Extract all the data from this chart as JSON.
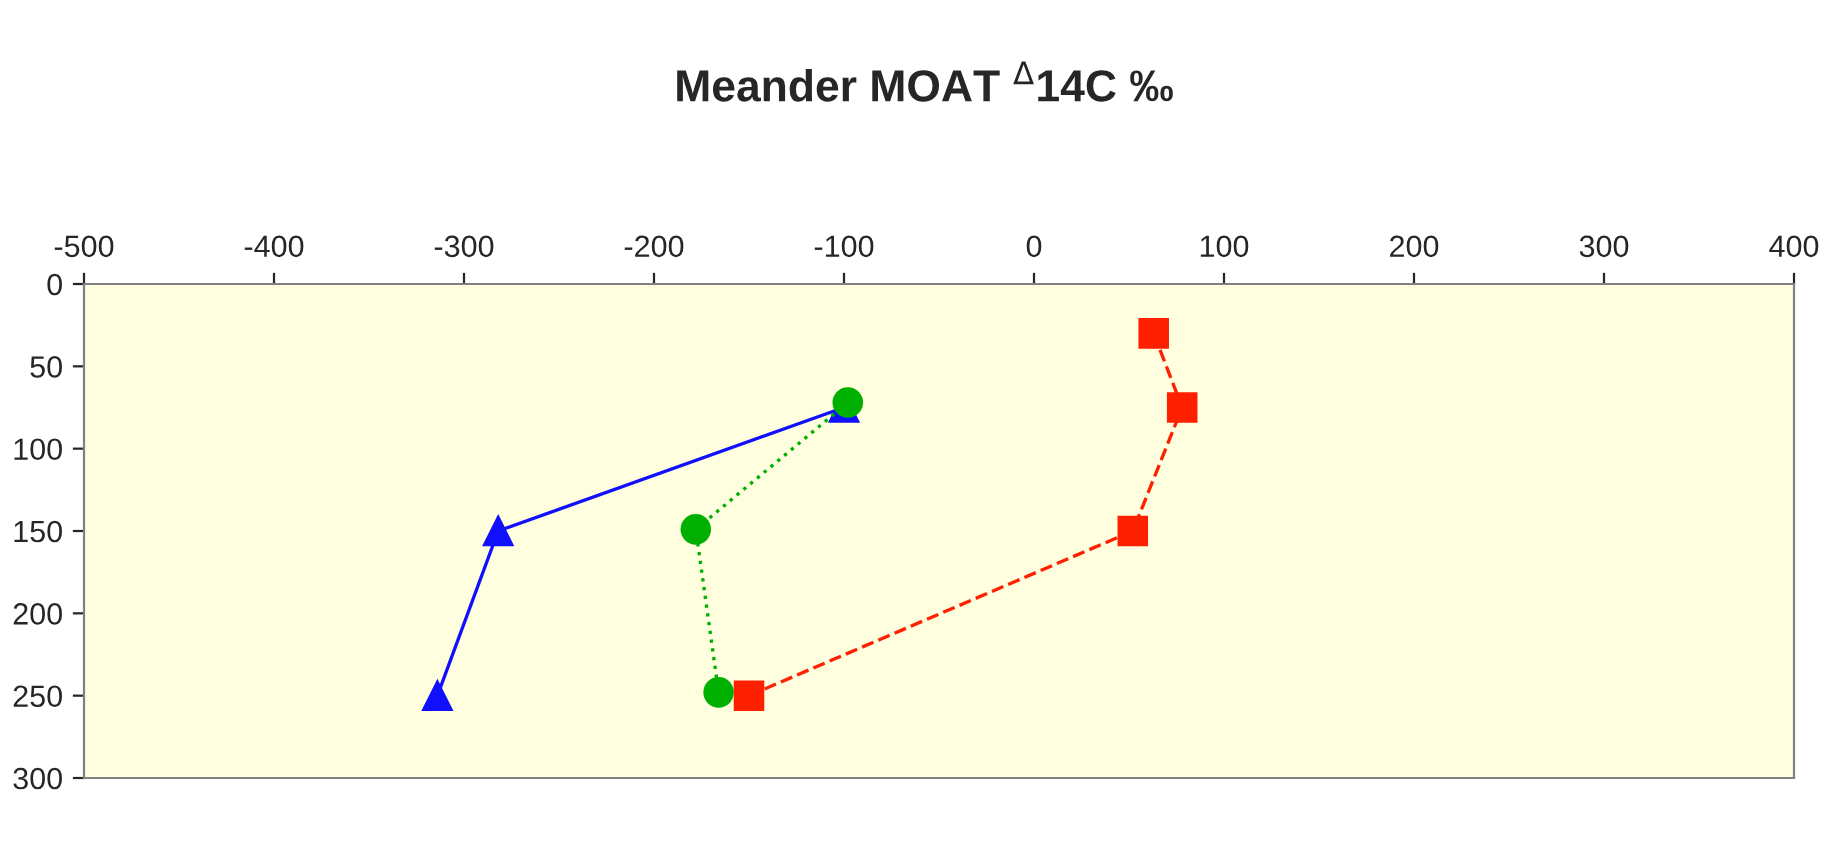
{
  "chart_data": {
    "type": "line",
    "title": "Meander MOAT $^{Δ}$14C ‰",
    "series": [
      {
        "color": "#1010ff",
        "marker": "triangle",
        "line_style": "solid",
        "x": [
          -100,
          -282,
          -314
        ],
        "values": [
          75,
          150,
          250
        ]
      },
      {
        "color": "#00b000",
        "marker": "circle",
        "line_style": "dotted",
        "x": [
          -98,
          -178,
          -166
        ],
        "values": [
          72,
          149,
          248
        ]
      },
      {
        "color": "#ff2000",
        "marker": "square",
        "line_style": "dashed",
        "x": [
          63,
          78,
          52,
          -150
        ],
        "values": [
          30,
          75,
          150,
          250
        ]
      }
    ],
    "xlim": [
      -500,
      400
    ],
    "xticks": [
      -500,
      -400,
      -300,
      -200,
      -100,
      0,
      100,
      200,
      300,
      400
    ],
    "ylim": [
      300,
      0
    ],
    "yticks": [
      0,
      50,
      100,
      150,
      200,
      250,
      300
    ],
    "grid": false,
    "legend": false
  }
}
